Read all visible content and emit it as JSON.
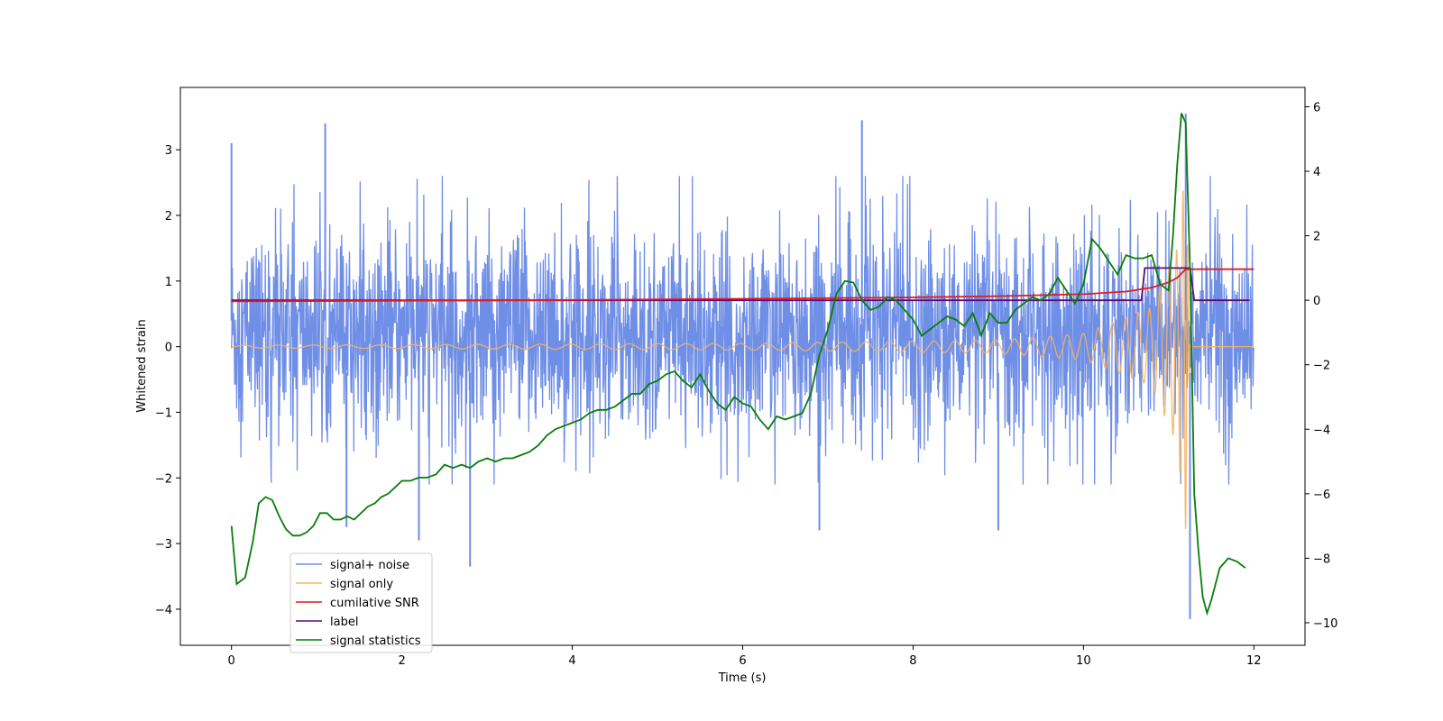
{
  "chart_data": {
    "type": "line",
    "title": "",
    "xlabel": "Time (s)",
    "ylabel": "Whitened strain",
    "y2label": "",
    "xlim": [
      -0.6,
      12.6
    ],
    "ylim": [
      -4.55,
      3.95
    ],
    "y2lim": [
      -10.7,
      6.6
    ],
    "x_ticks": [
      0,
      2,
      4,
      6,
      8,
      10,
      12
    ],
    "y_ticks": [
      -4,
      -3,
      -2,
      -1,
      0,
      1,
      2,
      3
    ],
    "y2_ticks": [
      -10,
      -8,
      -6,
      -4,
      -2,
      0,
      2,
      4,
      6
    ],
    "grid": false,
    "legend_position": "lower-left",
    "colors": {
      "signal_noise": "#6f8ee6",
      "signal_only": "#f5b35e",
      "snr": "#e41a1c",
      "label": "#5b0a73",
      "statistics": "#0a7d0a"
    },
    "series": [
      {
        "name": "signal+ noise",
        "axis": "left",
        "description_values": {
          "x_range": [
            0,
            12
          ],
          "typical_range": [
            -1.9,
            2.1
          ],
          "spikes": [
            [
              0.0,
              3.1
            ],
            [
              1.1,
              3.4
            ],
            [
              7.4,
              3.45
            ],
            [
              11.2,
              3.55
            ],
            [
              2.8,
              -3.35
            ],
            [
              11.25,
              -4.15
            ],
            [
              6.9,
              -2.8
            ],
            [
              9.0,
              -2.8
            ],
            [
              2.2,
              -2.95
            ],
            [
              1.35,
              -2.75
            ]
          ]
        }
      },
      {
        "name": "signal only",
        "axis": "left",
        "description_values": {
          "x_range": [
            0,
            12
          ],
          "envelope": [
            [
              0,
              0.02
            ],
            [
              6,
              0.05
            ],
            [
              9,
              0.1
            ],
            [
              10,
              0.2
            ],
            [
              10.8,
              0.6
            ],
            [
              11.1,
              1.5
            ],
            [
              11.2,
              2.8
            ],
            [
              11.25,
              0
            ]
          ]
        }
      },
      {
        "name": "cumilative SNR",
        "axis": "left",
        "x": [
          0,
          2,
          4,
          6,
          7,
          8,
          9,
          10,
          10.5,
          10.8,
          11.0,
          11.1,
          11.2,
          12
        ],
        "values": [
          0.69,
          0.7,
          0.71,
          0.73,
          0.74,
          0.75,
          0.77,
          0.8,
          0.84,
          0.9,
          0.98,
          1.05,
          1.18,
          1.18
        ]
      },
      {
        "name": "label",
        "axis": "right",
        "x": [
          0,
          10.68,
          10.72,
          11.25,
          11.3,
          11.95
        ],
        "values": [
          0,
          0,
          1,
          1,
          0,
          0
        ]
      },
      {
        "name": "signal statistics",
        "axis": "right",
        "x": [
          0,
          0.06,
          0.16,
          0.25,
          0.32,
          0.4,
          0.48,
          0.56,
          0.64,
          0.72,
          0.8,
          0.88,
          0.96,
          1.04,
          1.12,
          1.2,
          1.28,
          1.36,
          1.44,
          1.52,
          1.6,
          1.68,
          1.76,
          1.84,
          1.92,
          2.0,
          2.1,
          2.2,
          2.3,
          2.4,
          2.5,
          2.6,
          2.7,
          2.8,
          2.9,
          3.0,
          3.1,
          3.2,
          3.3,
          3.4,
          3.5,
          3.6,
          3.7,
          3.8,
          3.9,
          4.0,
          4.1,
          4.2,
          4.3,
          4.4,
          4.5,
          4.6,
          4.7,
          4.8,
          4.9,
          5.0,
          5.1,
          5.2,
          5.3,
          5.4,
          5.5,
          5.6,
          5.7,
          5.8,
          5.9,
          6.0,
          6.1,
          6.2,
          6.3,
          6.4,
          6.5,
          6.6,
          6.7,
          6.8,
          6.9,
          7.0,
          7.1,
          7.2,
          7.3,
          7.4,
          7.5,
          7.6,
          7.7,
          7.8,
          7.9,
          8.0,
          8.1,
          8.2,
          8.3,
          8.4,
          8.5,
          8.6,
          8.7,
          8.8,
          8.9,
          9.0,
          9.1,
          9.2,
          9.3,
          9.4,
          9.5,
          9.6,
          9.7,
          9.8,
          9.9,
          10.0,
          10.1,
          10.2,
          10.3,
          10.4,
          10.5,
          10.6,
          10.7,
          10.8,
          10.9,
          11.0,
          11.05,
          11.1,
          11.15,
          11.2,
          11.25,
          11.3,
          11.35,
          11.4,
          11.45,
          11.5,
          11.6,
          11.7,
          11.8,
          11.9
        ],
        "values": [
          -7.0,
          -8.8,
          -8.6,
          -7.5,
          -6.3,
          -6.1,
          -6.2,
          -6.7,
          -7.1,
          -7.3,
          -7.3,
          -7.2,
          -7.0,
          -6.6,
          -6.6,
          -6.8,
          -6.8,
          -6.7,
          -6.8,
          -6.6,
          -6.4,
          -6.3,
          -6.1,
          -6.0,
          -5.8,
          -5.6,
          -5.6,
          -5.5,
          -5.5,
          -5.4,
          -5.1,
          -5.2,
          -5.1,
          -5.2,
          -5.0,
          -4.9,
          -5.0,
          -4.9,
          -4.9,
          -4.8,
          -4.7,
          -4.5,
          -4.2,
          -4.0,
          -3.9,
          -3.8,
          -3.7,
          -3.5,
          -3.4,
          -3.4,
          -3.3,
          -3.1,
          -2.9,
          -2.9,
          -2.6,
          -2.5,
          -2.3,
          -2.2,
          -2.5,
          -2.7,
          -2.3,
          -2.8,
          -3.2,
          -3.4,
          -3.0,
          -3.2,
          -3.3,
          -3.7,
          -4.0,
          -3.6,
          -3.7,
          -3.6,
          -3.5,
          -2.9,
          -1.7,
          -0.9,
          0.2,
          0.6,
          0.55,
          0.0,
          -0.3,
          -0.2,
          0.1,
          0.0,
          -0.3,
          -0.6,
          -1.1,
          -0.9,
          -0.7,
          -0.5,
          -0.6,
          -0.8,
          -0.4,
          -1.1,
          -0.4,
          -0.7,
          -0.7,
          -0.3,
          -0.1,
          0.1,
          0.0,
          0.2,
          0.7,
          0.3,
          -0.1,
          0.5,
          1.9,
          1.6,
          1.2,
          0.8,
          1.4,
          1.3,
          1.3,
          1.4,
          0.5,
          0.3,
          2.0,
          4.2,
          5.8,
          5.5,
          1.0,
          -6.0,
          -7.8,
          -9.2,
          -9.7,
          -9.3,
          -8.3,
          -8.0,
          -8.1,
          -8.3
        ]
      }
    ]
  }
}
